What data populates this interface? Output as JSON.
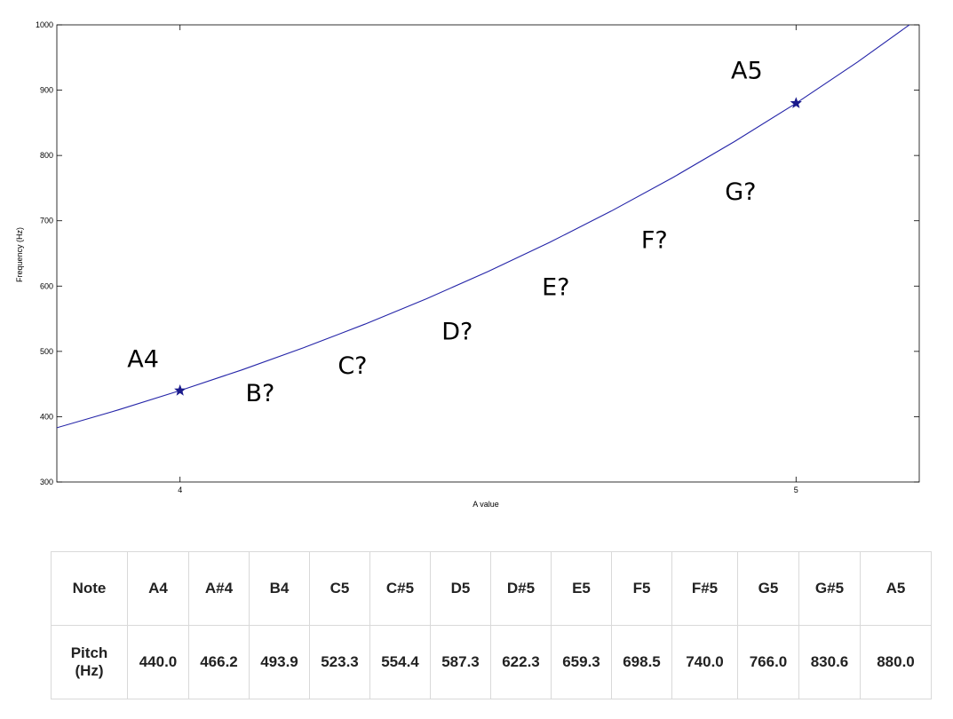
{
  "chart_data": {
    "type": "line",
    "xlabel": "A value",
    "ylabel": "Frequency (Hz)",
    "xlim": [
      3.8,
      5.2
    ],
    "ylim": [
      300,
      1000
    ],
    "xticks": [
      4,
      5
    ],
    "yticks": [
      300,
      400,
      500,
      600,
      700,
      800,
      900,
      1000
    ],
    "grid": false,
    "series": [
      {
        "x": [
          3.8,
          3.9,
          4.0,
          4.1,
          4.2,
          4.3,
          4.4,
          4.5,
          4.6,
          4.7,
          4.8,
          4.9,
          5.0,
          5.1,
          5.2
        ],
        "y": [
          383.0,
          410.5,
          440.0,
          471.6,
          505.4,
          541.7,
          580.6,
          622.3,
          667.0,
          714.9,
          766.2,
          821.2,
          880.0,
          943.2,
          1010.9
        ]
      }
    ],
    "markers": [
      {
        "x": 4,
        "y": 440,
        "label": "A4"
      },
      {
        "x": 5,
        "y": 880,
        "label": "A5"
      }
    ],
    "annotations": [
      {
        "text": "A4",
        "x": 3.94,
        "y": 476
      },
      {
        "text": "B?",
        "x": 4.13,
        "y": 424
      },
      {
        "text": "C?",
        "x": 4.28,
        "y": 466
      },
      {
        "text": "D?",
        "x": 4.45,
        "y": 518
      },
      {
        "text": "E?",
        "x": 4.61,
        "y": 586
      },
      {
        "text": "F?",
        "x": 4.77,
        "y": 658
      },
      {
        "text": "G?",
        "x": 4.91,
        "y": 732
      },
      {
        "text": "A5",
        "x": 4.92,
        "y": 918
      }
    ],
    "colors": {
      "line": "#2424a8",
      "marker": "#1a1a8c"
    }
  },
  "table": {
    "row_labels": [
      "Note",
      "Pitch\n(Hz)"
    ],
    "notes": [
      "A4",
      "A#4",
      "B4",
      "C5",
      "C#5",
      "D5",
      "D#5",
      "E5",
      "F5",
      "F#5",
      "G5",
      "G#5",
      "A5"
    ],
    "pitches": [
      "440.0",
      "466.2",
      "493.9",
      "523.3",
      "554.4",
      "587.3",
      "622.3",
      "659.3",
      "698.5",
      "740.0",
      "766.0",
      "830.6",
      "880.0"
    ]
  }
}
